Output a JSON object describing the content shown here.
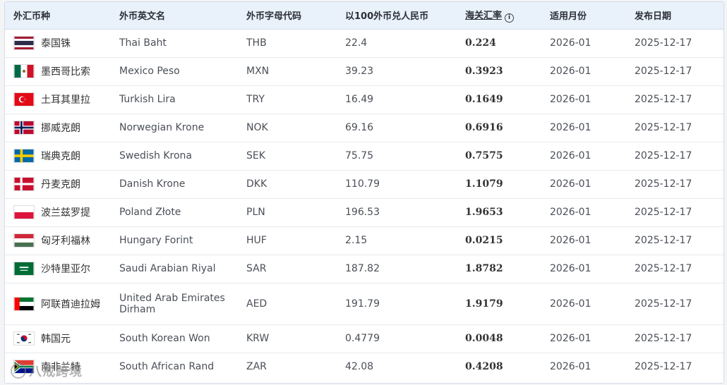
{
  "table": {
    "headers": {
      "name_cn": "外汇币种",
      "name_en": "外币英文名",
      "code": "外币字母代码",
      "per100": "以100外币兑人民币",
      "rate": "海关汇率",
      "month": "适用月份",
      "date": "发布日期"
    },
    "rows": [
      {
        "flag": "thailand-flag-icon",
        "cn": "泰国铢",
        "en": "Thai Baht",
        "code": "THB",
        "per100": "22.4",
        "rate": "0.224",
        "month": "2026-01",
        "date": "2025-12-17"
      },
      {
        "flag": "mexico-flag-icon",
        "cn": "墨西哥比索",
        "en": "Mexico Peso",
        "code": "MXN",
        "per100": "39.23",
        "rate": "0.3923",
        "month": "2026-01",
        "date": "2025-12-17"
      },
      {
        "flag": "turkey-flag-icon",
        "cn": "土耳其里拉",
        "en": "Turkish Lira",
        "code": "TRY",
        "per100": "16.49",
        "rate": "0.1649",
        "month": "2026-01",
        "date": "2025-12-17"
      },
      {
        "flag": "norway-flag-icon",
        "cn": "挪威克朗",
        "en": "Norwegian Krone",
        "code": "NOK",
        "per100": "69.16",
        "rate": "0.6916",
        "month": "2026-01",
        "date": "2025-12-17"
      },
      {
        "flag": "sweden-flag-icon",
        "cn": "瑞典克朗",
        "en": "Swedish Krona",
        "code": "SEK",
        "per100": "75.75",
        "rate": "0.7575",
        "month": "2026-01",
        "date": "2025-12-17"
      },
      {
        "flag": "denmark-flag-icon",
        "cn": "丹麦克朗",
        "en": "Danish Krone",
        "code": "DKK",
        "per100": "110.79",
        "rate": "1.1079",
        "month": "2026-01",
        "date": "2025-12-17"
      },
      {
        "flag": "poland-flag-icon",
        "cn": "波兰兹罗提",
        "en": "Poland Złote",
        "code": "PLN",
        "per100": "196.53",
        "rate": "1.9653",
        "month": "2026-01",
        "date": "2025-12-17"
      },
      {
        "flag": "hungary-flag-icon",
        "cn": "匈牙利福林",
        "en": "Hungary Forint",
        "code": "HUF",
        "per100": "2.15",
        "rate": "0.0215",
        "month": "2026-01",
        "date": "2025-12-17"
      },
      {
        "flag": "saudi-flag-icon",
        "cn": "沙特里亚尔",
        "en": "Saudi Arabian Riyal",
        "code": "SAR",
        "per100": "187.82",
        "rate": "1.8782",
        "month": "2026-01",
        "date": "2025-12-17"
      },
      {
        "flag": "uae-flag-icon",
        "cn": "阿联酋迪拉姆",
        "en": "United Arab Emirates Dirham",
        "code": "AED",
        "per100": "191.79",
        "rate": "1.9179",
        "month": "2026-01",
        "date": "2025-12-17"
      },
      {
        "flag": "korea-flag-icon",
        "cn": "韩国元",
        "en": "South Korean Won",
        "code": "KRW",
        "per100": "0.4779",
        "rate": "0.0048",
        "month": "2026-01",
        "date": "2025-12-17"
      },
      {
        "flag": "south-africa-flag-icon",
        "cn": "南非兰特",
        "en": "South African Rand",
        "code": "ZAR",
        "per100": "42.08",
        "rate": "0.4208",
        "month": "2026-01",
        "date": "2025-12-17"
      }
    ]
  },
  "watermark": {
    "text": "八戒跨境"
  }
}
